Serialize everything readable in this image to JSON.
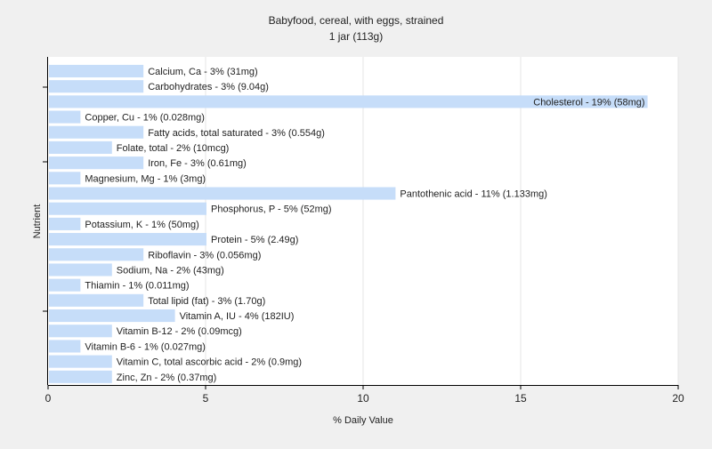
{
  "chart_data": {
    "type": "bar",
    "orientation": "horizontal",
    "title": "Babyfood, cereal, with eggs, strained",
    "subtitle": "1 jar (113g)",
    "xlabel": "% Daily Value",
    "ylabel": "Nutrient",
    "xlim": [
      0,
      20
    ],
    "xticks": [
      0,
      5,
      10,
      15,
      20
    ],
    "grid": true,
    "bar_color": "#c6ddf9",
    "background_color": "#f0f0f0",
    "plot_background_color": "#ffffff",
    "categories": [
      "Calcium, Ca - 3% (31mg)",
      "Carbohydrates - 3% (9.04g)",
      "Cholesterol - 19% (58mg)",
      "Copper, Cu - 1% (0.028mg)",
      "Fatty acids, total saturated - 3% (0.554g)",
      "Folate, total - 2% (10mcg)",
      "Iron, Fe - 3% (0.61mg)",
      "Magnesium, Mg - 1% (3mg)",
      "Pantothenic acid - 11% (1.133mg)",
      "Phosphorus, P - 5% (52mg)",
      "Potassium, K - 1% (50mg)",
      "Protein - 5% (2.49g)",
      "Riboflavin - 3% (0.056mg)",
      "Sodium, Na - 2% (43mg)",
      "Thiamin - 1% (0.011mg)",
      "Total lipid (fat) - 3% (1.70g)",
      "Vitamin A, IU - 4% (182IU)",
      "Vitamin B-12 - 2% (0.09mcg)",
      "Vitamin B-6 - 1% (0.027mg)",
      "Vitamin C, total ascorbic acid - 2% (0.9mg)",
      "Zinc, Zn - 2% (0.37mg)"
    ],
    "values": [
      3,
      3,
      19,
      1,
      3,
      2,
      3,
      1,
      11,
      5,
      1,
      5,
      3,
      2,
      1,
      3,
      4,
      2,
      1,
      2,
      2
    ]
  }
}
